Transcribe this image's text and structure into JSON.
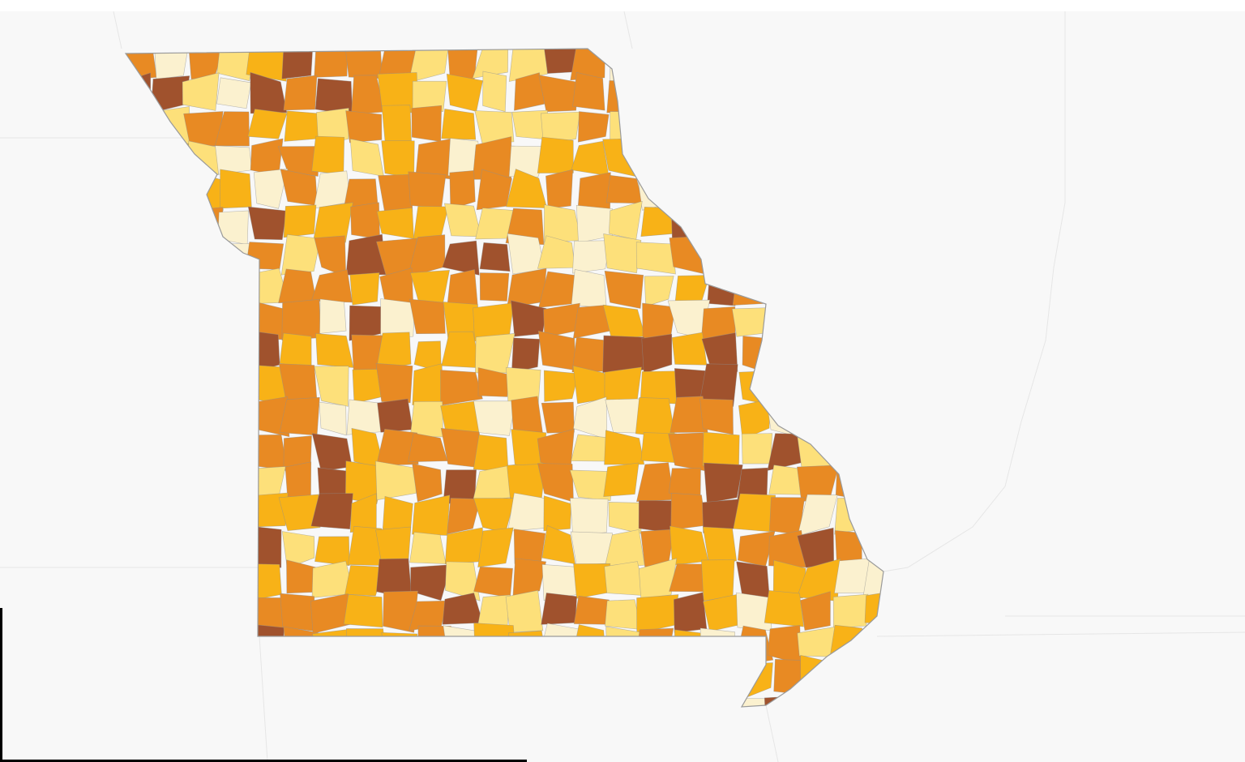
{
  "map": {
    "palette": [
      "#fbf1cf",
      "#fde07a",
      "#f8b217",
      "#e88a23",
      "#a0522d"
    ]
  }
}
